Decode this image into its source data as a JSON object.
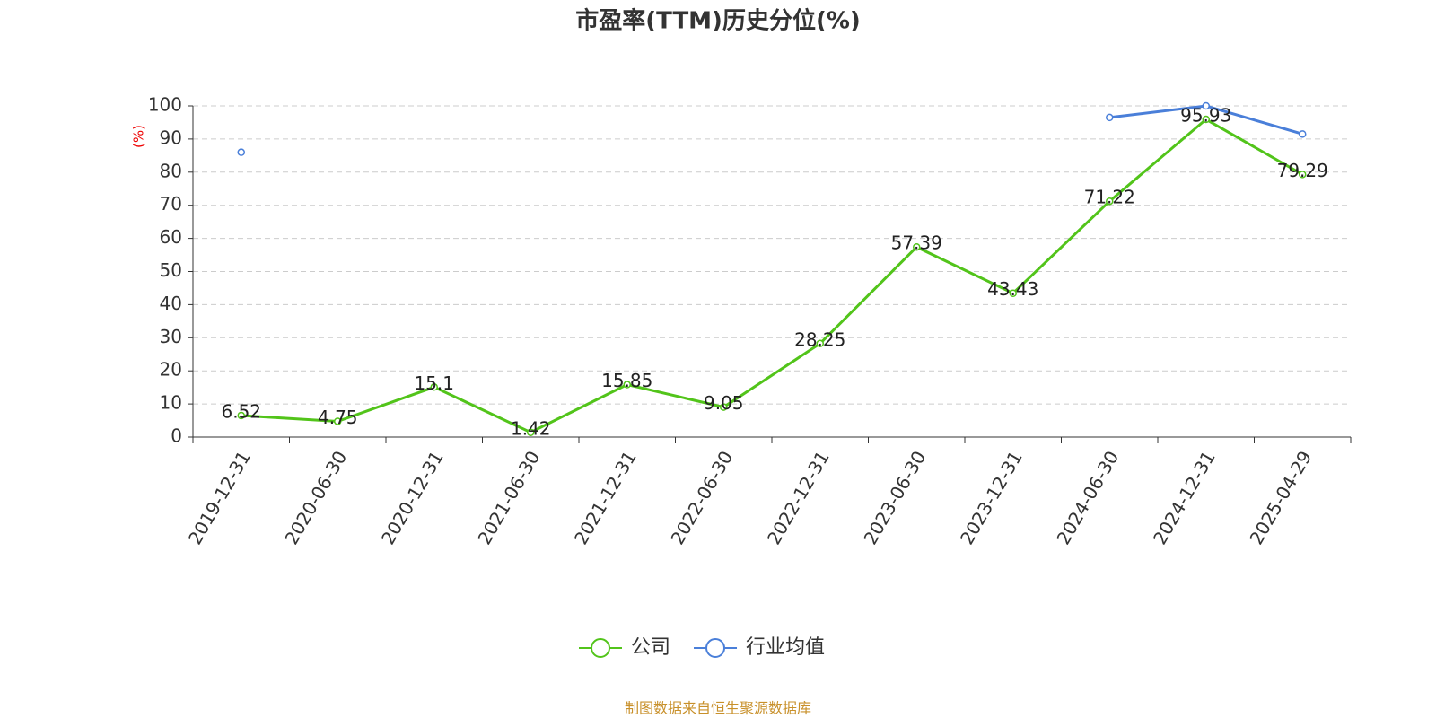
{
  "chart_data": {
    "type": "line",
    "title": "市盈率(TTM)历史分位(%)",
    "y_label": "(%)",
    "categories": [
      "2019-12-31",
      "2020-06-30",
      "2020-12-31",
      "2021-06-30",
      "2021-12-31",
      "2022-06-30",
      "2022-12-31",
      "2023-06-30",
      "2023-12-31",
      "2024-06-30",
      "2024-12-31",
      "2025-04-29"
    ],
    "series": [
      {
        "name": "公司",
        "color": "#52c41a",
        "values": [
          6.52,
          4.75,
          15.1,
          1.42,
          15.85,
          9.05,
          28.25,
          57.39,
          43.43,
          71.22,
          95.93,
          79.29
        ],
        "show_labels": true
      },
      {
        "name": "行业均值",
        "color": "#4a7fd9",
        "values": [
          86,
          null,
          null,
          null,
          null,
          null,
          null,
          null,
          null,
          96.5,
          100,
          91.5
        ],
        "show_labels": false
      }
    ],
    "ylim": [
      0,
      100
    ],
    "yticks": [
      0,
      10,
      20,
      30,
      40,
      50,
      60,
      70,
      80,
      90,
      100
    ],
    "grid": true,
    "source": "制图数据来自恒生聚源数据库"
  }
}
